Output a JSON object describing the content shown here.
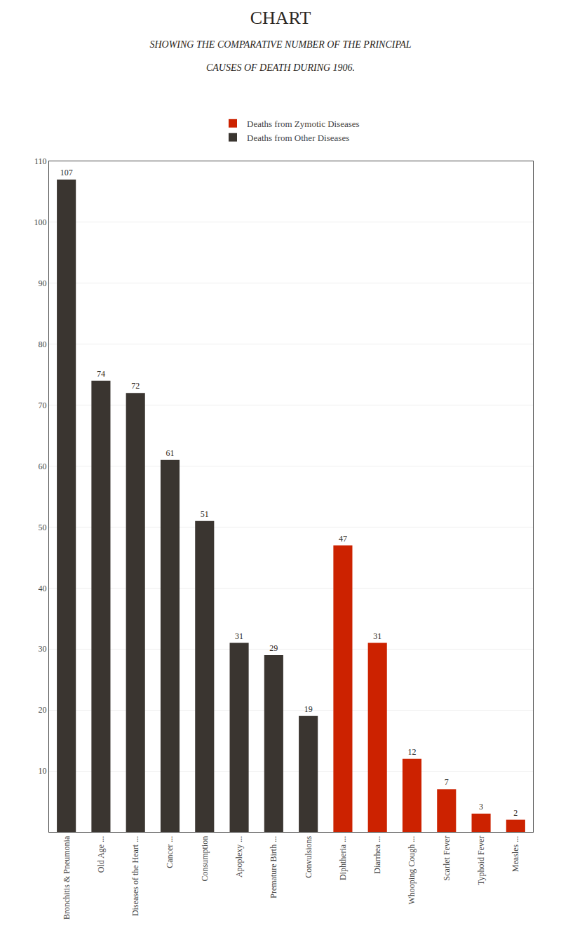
{
  "chart_data": {
    "type": "bar",
    "title": "CHART",
    "subtitle": [
      "SHOWING THE COMPARATIVE NUMBER OF THE PRINCIPAL",
      "CAUSES OF DEATH DURING 1906."
    ],
    "categories": [
      "Bronchitis & Pneumonia",
      "Old Age ...",
      "Diseases of the Heart ...",
      "Cancer ...",
      "Consumption",
      "Apoplexy ...",
      "Premature Birth ...",
      "Convulsions",
      "Diphtheria ...",
      "Diarrhea ...",
      "Whooping Cough ...",
      "Scarlet Fever",
      "Typhoid Fever",
      "Measles ..."
    ],
    "series": [
      {
        "name": "Deaths from Zymotic Diseases",
        "color": "#cc2200",
        "values": [
          null,
          null,
          null,
          null,
          null,
          null,
          null,
          null,
          47,
          31,
          12,
          7,
          3,
          2
        ]
      },
      {
        "name": "Deaths from Other Diseases",
        "color": "#3a3530",
        "values": [
          107,
          74,
          72,
          61,
          51,
          31,
          29,
          19,
          null,
          null,
          null,
          null,
          null,
          null
        ]
      }
    ],
    "ylim": [
      0,
      110
    ],
    "yticks": [
      10,
      20,
      30,
      40,
      50,
      60,
      70,
      80,
      90,
      100,
      110
    ],
    "grid": true,
    "data_labels": true,
    "legend": "top"
  }
}
